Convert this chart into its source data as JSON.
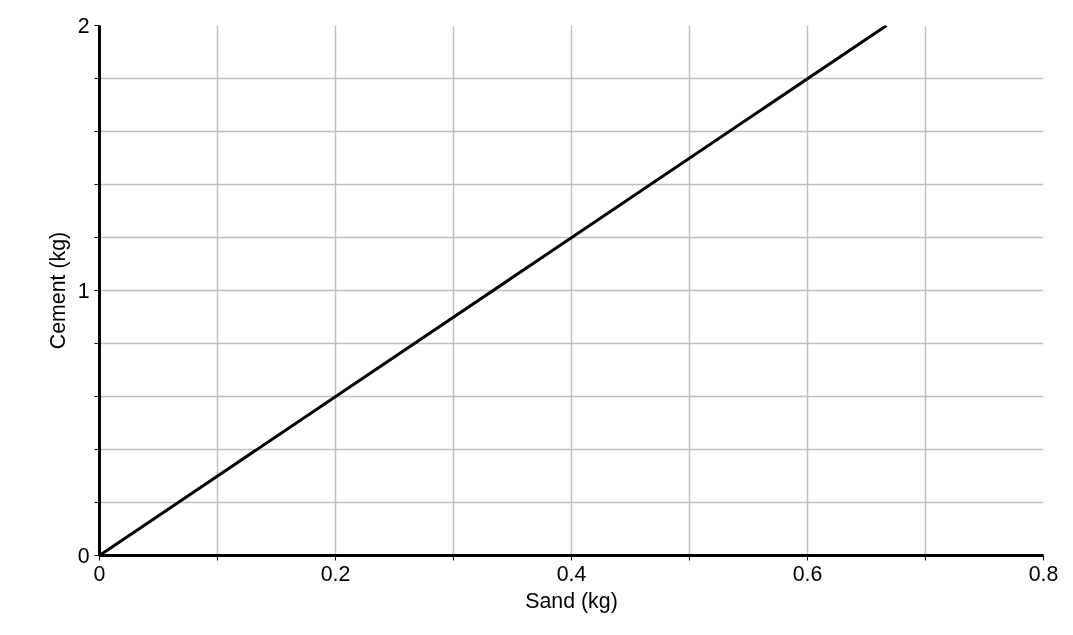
{
  "chart_data": {
    "type": "line",
    "xlabel": "Sand (kg)",
    "ylabel": "Cement (kg)",
    "x": [
      0,
      0.667
    ],
    "series": [
      {
        "color": "#000000",
        "values": [
          0,
          2
        ]
      }
    ],
    "xlim": [
      0,
      0.8
    ],
    "xticks": [
      0,
      {
        "value": 0.1,
        "label": null
      },
      0.2,
      {
        "value": 0.3,
        "label": null
      },
      0.4,
      {
        "value": 0.5,
        "label": null
      },
      0.6,
      {
        "value": 0.7,
        "label": null
      },
      0.8
    ],
    "ylim": [
      0,
      2
    ],
    "yticks": [
      0,
      {
        "value": 0.2,
        "label": null
      },
      {
        "value": 0.4,
        "label": null
      },
      {
        "value": 0.6,
        "label": null
      },
      {
        "value": 0.8,
        "label": null
      },
      1,
      {
        "value": 1.2,
        "label": null
      },
      {
        "value": 1.4,
        "label": null
      },
      {
        "value": 1.6,
        "label": null
      },
      {
        "value": 1.8,
        "label": null
      },
      2
    ],
    "grid": true,
    "marker": "none",
    "line_style": "solid"
  }
}
